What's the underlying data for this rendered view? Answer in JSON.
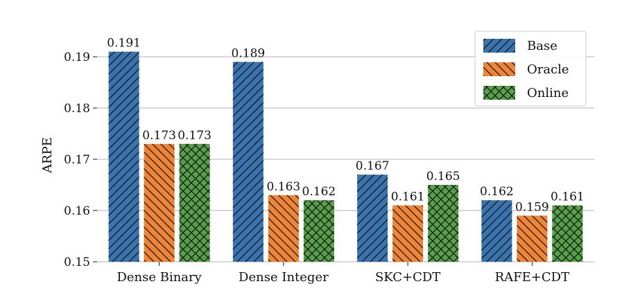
{
  "chart_data": {
    "type": "bar",
    "title": "",
    "xlabel": "",
    "ylabel": "ARPE",
    "ylim": [
      0.15,
      0.195
    ],
    "yticks": [
      0.15,
      0.16,
      0.17,
      0.18,
      0.19
    ],
    "ytick_labels": [
      "0.15",
      "0.16",
      "0.17",
      "0.18",
      "0.19"
    ],
    "grid": "horizontal",
    "legend_position": "top-right",
    "categories": [
      "Dense Binary",
      "Dense Integer",
      "SKC+CDT",
      "RAFE+CDT"
    ],
    "series": [
      {
        "name": "Base",
        "color": "#3a74ae",
        "hatch": "diagonal-up",
        "values": [
          0.191,
          0.189,
          0.167,
          0.162
        ],
        "labels": [
          "0.191",
          "0.189",
          "0.167",
          "0.162"
        ]
      },
      {
        "name": "Oracle",
        "color": "#ee8435",
        "hatch": "diagonal-down",
        "values": [
          0.173,
          0.163,
          0.161,
          0.159
        ],
        "labels": [
          "0.173",
          "0.163",
          "0.161",
          "0.159"
        ]
      },
      {
        "name": "Online",
        "color": "#56a047",
        "hatch": "cross",
        "values": [
          0.173,
          0.162,
          0.165,
          0.161
        ],
        "labels": [
          "0.173",
          "0.162",
          "0.165",
          "0.161"
        ]
      }
    ]
  }
}
